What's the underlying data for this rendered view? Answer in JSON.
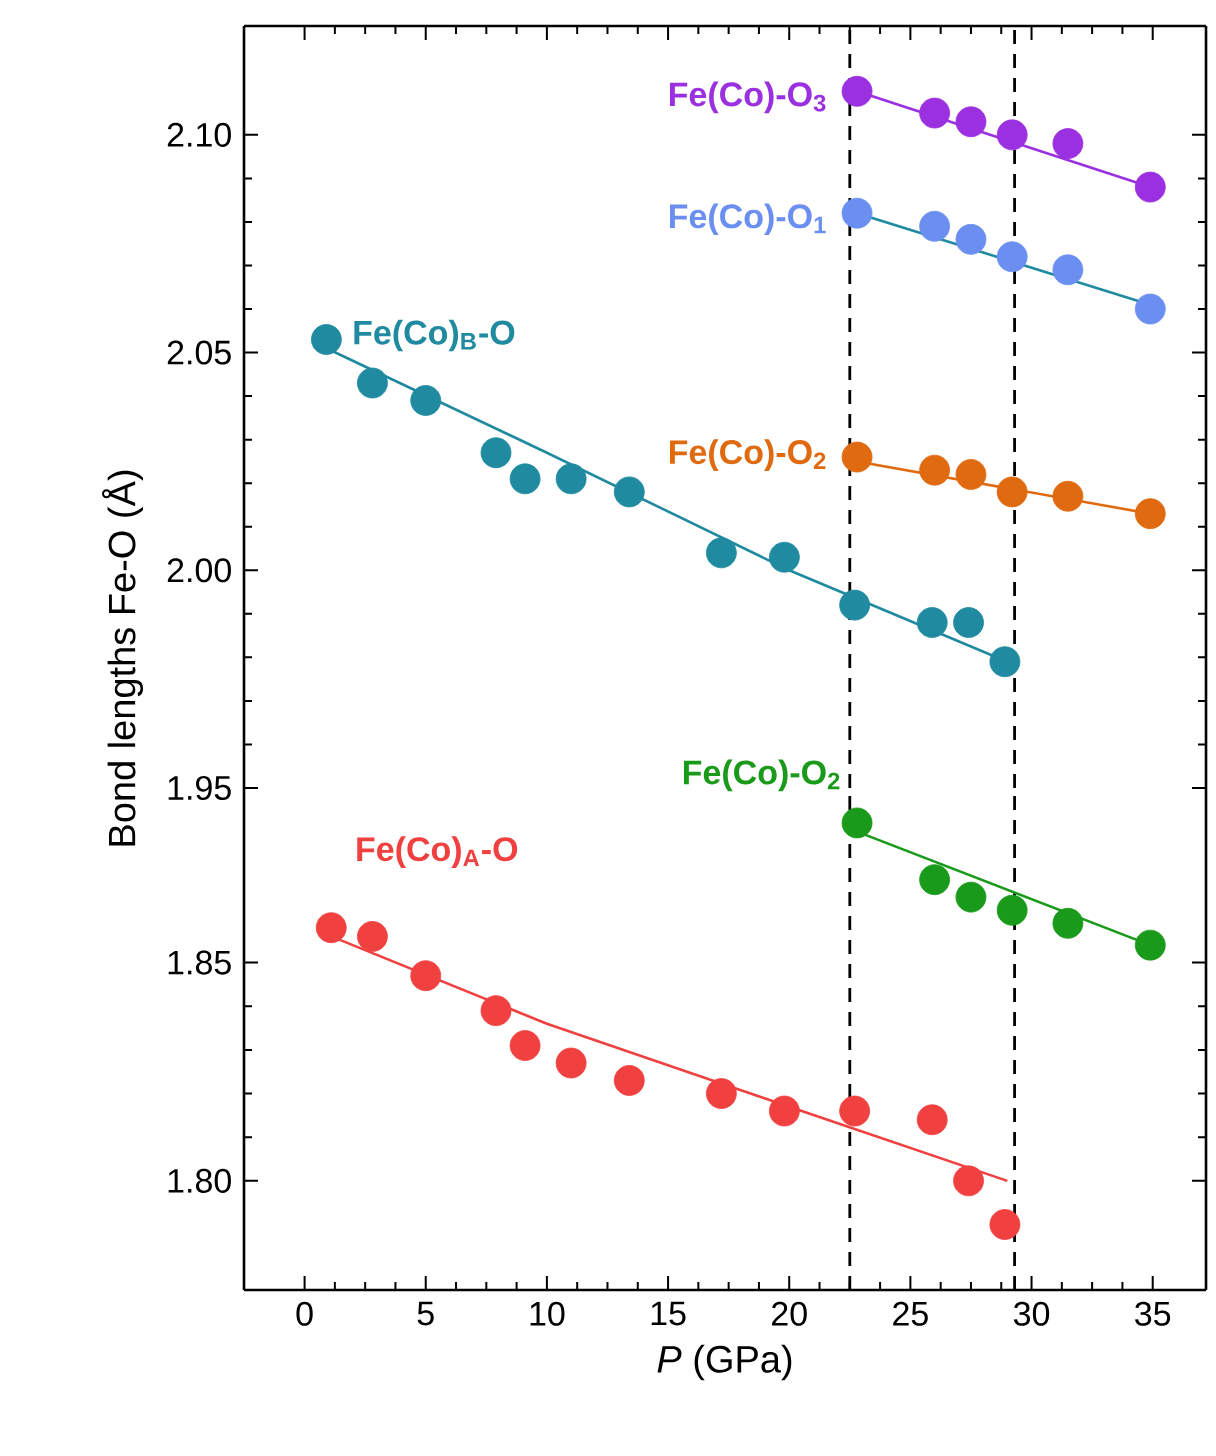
{
  "chart_data": [
    {
      "type": "scatter",
      "ylabel": "Bond lengths Fe-O (Å)",
      "tick_labels": "y",
      "xlim": [
        -2.5,
        37.2
      ],
      "xticks": [
        0,
        5,
        10,
        15,
        20,
        25,
        30,
        35
      ],
      "ylim": [
        1.95,
        2.125
      ],
      "yticks": [
        {
          "value": 1.95,
          "label": "1.95"
        },
        {
          "value": 2.0,
          "label": "2.00"
        },
        {
          "value": 2.05,
          "label": "2.05"
        },
        {
          "value": 2.1,
          "label": "2.10"
        }
      ],
      "ref_lines": [
        {
          "axis": "x",
          "value": 22.5,
          "color": "#000000",
          "line_style": "dashed"
        },
        {
          "axis": "x",
          "value": 29.3,
          "color": "#000000",
          "line_style": "dashed"
        }
      ],
      "series": [
        {
          "name": "Fe(Co)-O$_{3}$",
          "marker": "circle",
          "color": "#9b30e0",
          "x": [
            22.8,
            26.0,
            27.5,
            29.2,
            31.5,
            34.9
          ],
          "values": [
            2.11,
            2.105,
            2.103,
            2.1,
            2.098,
            2.088
          ]
        },
        {
          "type": "line",
          "marker": "none",
          "color": "#9b30e0",
          "x": [
            22.8,
            34.9
          ],
          "values": [
            2.11,
            2.088
          ]
        },
        {
          "name": "Fe(Co)-O$_{1}$",
          "marker": "circle",
          "color": "#6a8ff0",
          "x": [
            22.8,
            26.0,
            27.5,
            29.2,
            31.5,
            34.9
          ],
          "values": [
            2.082,
            2.079,
            2.076,
            2.072,
            2.069,
            2.06
          ]
        },
        {
          "type": "line",
          "marker": "none",
          "color": "#1f8aa0",
          "x": [
            22.8,
            34.9
          ],
          "values": [
            2.082,
            2.061
          ]
        },
        {
          "name": "Fe(Co)-O$_{2}$",
          "marker": "circle",
          "color": "#e06a10",
          "x": [
            22.8,
            26.0,
            27.5,
            29.2,
            31.5,
            34.9
          ],
          "values": [
            2.026,
            2.023,
            2.022,
            2.018,
            2.017,
            2.013
          ]
        },
        {
          "type": "line",
          "marker": "none",
          "color": "#e06a10",
          "x": [
            22.8,
            34.9
          ],
          "values": [
            2.025,
            2.013
          ]
        },
        {
          "name": "Fe(Co)$_{B}$-O",
          "marker": "circle",
          "color": "#1f8aa0",
          "x": [
            0.9,
            2.8,
            5.0,
            7.9,
            9.1,
            11.0,
            13.4,
            17.2,
            19.8,
            22.7,
            25.9,
            27.4,
            28.9
          ],
          "values": [
            2.053,
            2.043,
            2.039,
            2.027,
            2.021,
            2.021,
            2.018,
            2.004,
            2.003,
            1.992,
            1.988,
            1.988,
            1.979
          ]
        },
        {
          "type": "line",
          "marker": "none",
          "color": "#1f8aa0",
          "x": [
            0.9,
            10.0,
            20.0,
            29.0
          ],
          "values": [
            2.051,
            2.027,
            2.0,
            1.979
          ]
        }
      ]
    },
    {
      "type": "scatter",
      "xlabel": "*P* (GPa)",
      "xlim": [
        -2.5,
        37.2
      ],
      "xticks": [
        0,
        5,
        10,
        15,
        20,
        25,
        30,
        35
      ],
      "ylim": [
        1.775,
        1.89
      ],
      "yticks": [
        {
          "value": 1.8,
          "label": "1.80"
        },
        {
          "value": 1.85,
          "label": "1.85"
        }
      ],
      "ref_lines": [
        {
          "axis": "x",
          "value": 22.5,
          "color": "#000000",
          "line_style": "dashed"
        },
        {
          "axis": "x",
          "value": 29.3,
          "color": "#000000",
          "line_style": "dashed"
        }
      ],
      "series": [
        {
          "name": "Fe(Co)-O$_{2}$",
          "marker": "circle",
          "color": "#1a9a1a",
          "x": [
            22.8,
            26.0,
            27.5,
            29.2,
            31.5,
            34.9
          ],
          "values": [
            1.882,
            1.869,
            1.865,
            1.862,
            1.859,
            1.854
          ]
        },
        {
          "type": "line",
          "marker": "none",
          "color": "#1a9a1a",
          "x": [
            22.8,
            34.9
          ],
          "values": [
            1.88,
            1.854
          ]
        },
        {
          "name": "Fe(Co)$_{A}$-O",
          "marker": "circle",
          "color": "#f04040",
          "x": [
            1.1,
            2.8,
            5.0,
            7.9,
            9.1,
            11.0,
            13.4,
            17.2,
            19.8,
            22.7,
            25.9,
            27.4,
            28.9
          ],
          "values": [
            1.858,
            1.856,
            1.847,
            1.839,
            1.831,
            1.827,
            1.823,
            1.82,
            1.816,
            1.816,
            1.814,
            1.8,
            1.79
          ]
        },
        {
          "type": "line",
          "marker": "none",
          "color": "#f04040",
          "x": [
            1.1,
            10.0,
            20.0,
            29.0
          ],
          "values": [
            1.856,
            1.836,
            1.817,
            1.8
          ]
        }
      ]
    }
  ]
}
